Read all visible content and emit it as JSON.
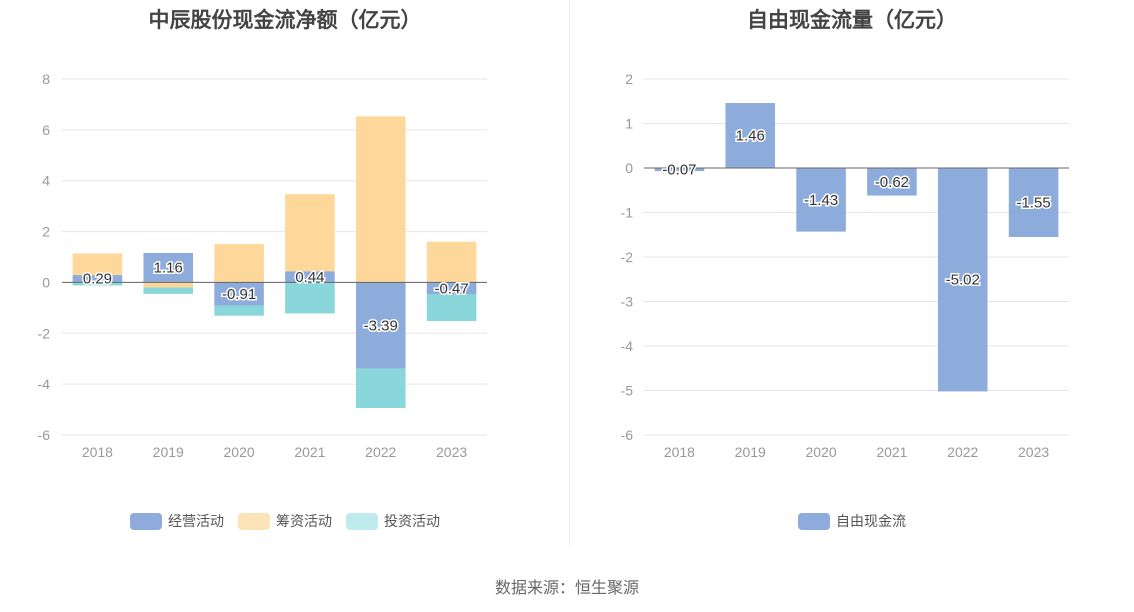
{
  "source_text": "数据来源：恒生聚源",
  "chart_data": [
    {
      "type": "bar",
      "stacked": true,
      "title": "中辰股份现金流净额（亿元）",
      "categories": [
        "2018",
        "2019",
        "2020",
        "2021",
        "2022",
        "2023"
      ],
      "ylim": [
        -6,
        8
      ],
      "yticks": [
        8,
        6,
        4,
        2,
        0,
        -2,
        -4,
        -6
      ],
      "grid": true,
      "legend_position": "bottom",
      "series": [
        {
          "name": "经营活动",
          "color": "#8eacdb",
          "values": [
            0.29,
            1.16,
            -0.91,
            0.44,
            -3.39,
            -0.47
          ],
          "labels": [
            "0.29",
            "1.16",
            "-0.91",
            "0.44",
            "-3.39",
            "-0.47"
          ]
        },
        {
          "name": "筹资活动",
          "color": "#fdd89a",
          "values": [
            0.85,
            -0.2,
            1.51,
            3.03,
            6.53,
            1.6
          ]
        },
        {
          "name": "投资活动",
          "color": "#89d7db",
          "values": [
            -0.12,
            -0.25,
            -0.4,
            -1.22,
            -1.55,
            -1.05
          ]
        }
      ],
      "legend": [
        {
          "name": "经营活动",
          "color": "#8eacdb"
        },
        {
          "name": "筹资活动",
          "color": "#fde3b8"
        },
        {
          "name": "投资活动",
          "color": "#c0ebee"
        }
      ]
    },
    {
      "type": "bar",
      "title": "自由现金流量（亿元）",
      "categories": [
        "2018",
        "2019",
        "2020",
        "2021",
        "2022",
        "2023"
      ],
      "ylim": [
        -6,
        2
      ],
      "yticks": [
        2,
        1,
        0,
        -1,
        -2,
        -3,
        -4,
        -5,
        -6
      ],
      "grid": true,
      "legend_position": "bottom",
      "series": [
        {
          "name": "自由现金流",
          "color": "#8eacdb",
          "values": [
            -0.07,
            1.46,
            -1.43,
            -0.62,
            -5.02,
            -1.55
          ],
          "labels": [
            "-0.07",
            "1.46",
            "-1.43",
            "-0.62",
            "-5.02",
            "-1.55"
          ]
        }
      ],
      "legend": [
        {
          "name": "自由现金流",
          "color": "#8eacdb"
        }
      ]
    }
  ]
}
